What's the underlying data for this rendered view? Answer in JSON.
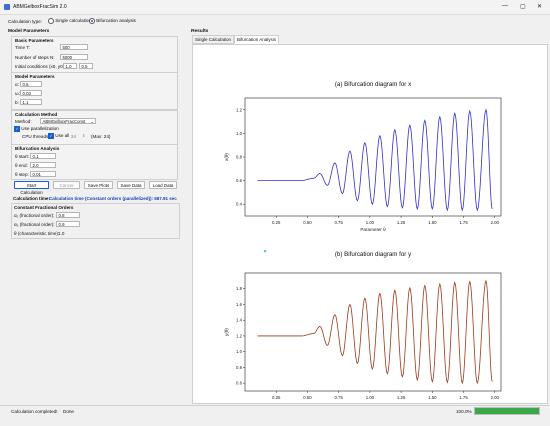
{
  "window": {
    "title": "ABMGelboxFracSim 2.0",
    "controls": [
      "—",
      "▢",
      "✕"
    ]
  },
  "calc_type": {
    "label": "Calculation type:",
    "options": [
      "Single calculation",
      "Bifurcation analysis"
    ],
    "selected": 1
  },
  "left": {
    "header": "Model Parameters",
    "basic": {
      "title": "Basic Parameters",
      "time_label": "Time T:",
      "time_value": "500",
      "steps_label": "Number of steps N:",
      "steps_value": "5000",
      "ic_label": "Initial conditions (x0, y0):",
      "ic_x": "1.0",
      "ic_y": "0.5"
    },
    "model": {
      "title": "Model Parameters",
      "alpha_label": "α:",
      "alpha_value": "0.6",
      "w_label": "ω:",
      "w_value": "0.03",
      "b_label": "b:",
      "b_value": "1.1"
    },
    "method": {
      "title": "Calculation Method",
      "method_label": "Method:",
      "method_value": "ABMGelboxFracConst",
      "parallel_label": "Use parallelization",
      "cpu_label": "CPU threads:",
      "use_all_label": "Use all",
      "threads_value": "24",
      "max_label": "(Max: 24)"
    },
    "bifurcation": {
      "title": "Bifurcation Analysis",
      "start_label": "θ start:",
      "start_value": "0.1",
      "end_label": "θ end:",
      "end_value": "2.0",
      "step_label": "θ step:",
      "step_value": "0.01"
    },
    "buttons": {
      "start": "Start Calculation",
      "cancel": "Cancel",
      "save_plots": "Save Plots",
      "save_data": "Save Data",
      "load_data": "Load Data"
    },
    "calc_time": {
      "label": "Calculation time:",
      "value": "Calculation time (Constant orders (parallelized)): 687.91 sec"
    },
    "orders": {
      "title": "Constant Fractional Orders",
      "q1_label": "α₁ (fractional order):",
      "q1_value": "0.8",
      "q2_label": "α₂ (fractional order):",
      "q2_value": "0.9",
      "theta_label": "θ (characteristic time):",
      "theta_value": "1.0"
    }
  },
  "right": {
    "header": "Results",
    "tabs": [
      "Single Calculation",
      "Bifurcation Analysis"
    ],
    "active_tab": 1
  },
  "chart_data": [
    {
      "type": "line",
      "title": "(a) Bifurcation diagram for x",
      "xlabel": "Parameter θ",
      "ylabel": "x(θ)",
      "xlim": [
        0,
        2.05
      ],
      "ylim": [
        0.3,
        1.3
      ],
      "xticks": [
        "0.25",
        "0.50",
        "0.75",
        "1.00",
        "1.25",
        "1.50",
        "1.75",
        "2.00"
      ],
      "yticks": [
        "0.4",
        "0.6",
        "0.8",
        "1.0",
        "1.2"
      ],
      "series": [
        {
          "color": "#3030c8",
          "x": [
            0.1,
            0.45,
            0.55,
            0.6,
            0.66,
            0.72,
            0.78,
            0.84,
            0.9,
            0.96,
            1.02,
            1.08,
            1.14,
            1.2,
            1.26,
            1.32,
            1.38,
            1.44,
            1.5,
            1.56,
            1.62,
            1.68,
            1.74,
            1.8,
            1.86,
            1.93,
            1.98
          ],
          "y": [
            0.6,
            0.6,
            0.62,
            0.66,
            0.56,
            0.75,
            0.49,
            0.85,
            0.43,
            0.92,
            0.4,
            0.98,
            0.38,
            1.03,
            0.37,
            1.07,
            0.36,
            1.11,
            0.36,
            1.14,
            0.35,
            1.17,
            0.35,
            1.19,
            0.35,
            1.2,
            0.36
          ]
        }
      ]
    },
    {
      "type": "line",
      "title": "(b) Bifurcation diagram for y",
      "xlabel": "Parameter θ",
      "ylabel": "y(θ)",
      "xlim": [
        0,
        2.05
      ],
      "ylim": [
        0.5,
        2.0
      ],
      "xticks": [
        "0.25",
        "0.50",
        "0.75",
        "1.00",
        "1.25",
        "1.50",
        "1.75",
        "2.00"
      ],
      "yticks": [
        "0.6",
        "0.8",
        "1.0",
        "1.2",
        "1.4",
        "1.6",
        "1.8"
      ],
      "series": [
        {
          "color": "#9b3a1a",
          "x": [
            0.1,
            0.45,
            0.55,
            0.6,
            0.66,
            0.72,
            0.78,
            0.84,
            0.9,
            0.96,
            1.02,
            1.08,
            1.14,
            1.2,
            1.26,
            1.32,
            1.38,
            1.44,
            1.5,
            1.56,
            1.62,
            1.68,
            1.74,
            1.8,
            1.86,
            1.93,
            1.98
          ],
          "y": [
            1.2,
            1.2,
            1.23,
            1.32,
            1.08,
            1.47,
            0.95,
            1.6,
            0.85,
            1.68,
            0.78,
            1.74,
            0.72,
            1.78,
            0.68,
            1.81,
            0.64,
            1.84,
            0.62,
            1.86,
            0.61,
            1.88,
            0.6,
            1.89,
            0.6,
            1.9,
            0.62
          ]
        }
      ]
    }
  ],
  "status": {
    "message": "Calculation completed!",
    "state": "Done",
    "percent": "100.0%",
    "progress": 1.0
  }
}
